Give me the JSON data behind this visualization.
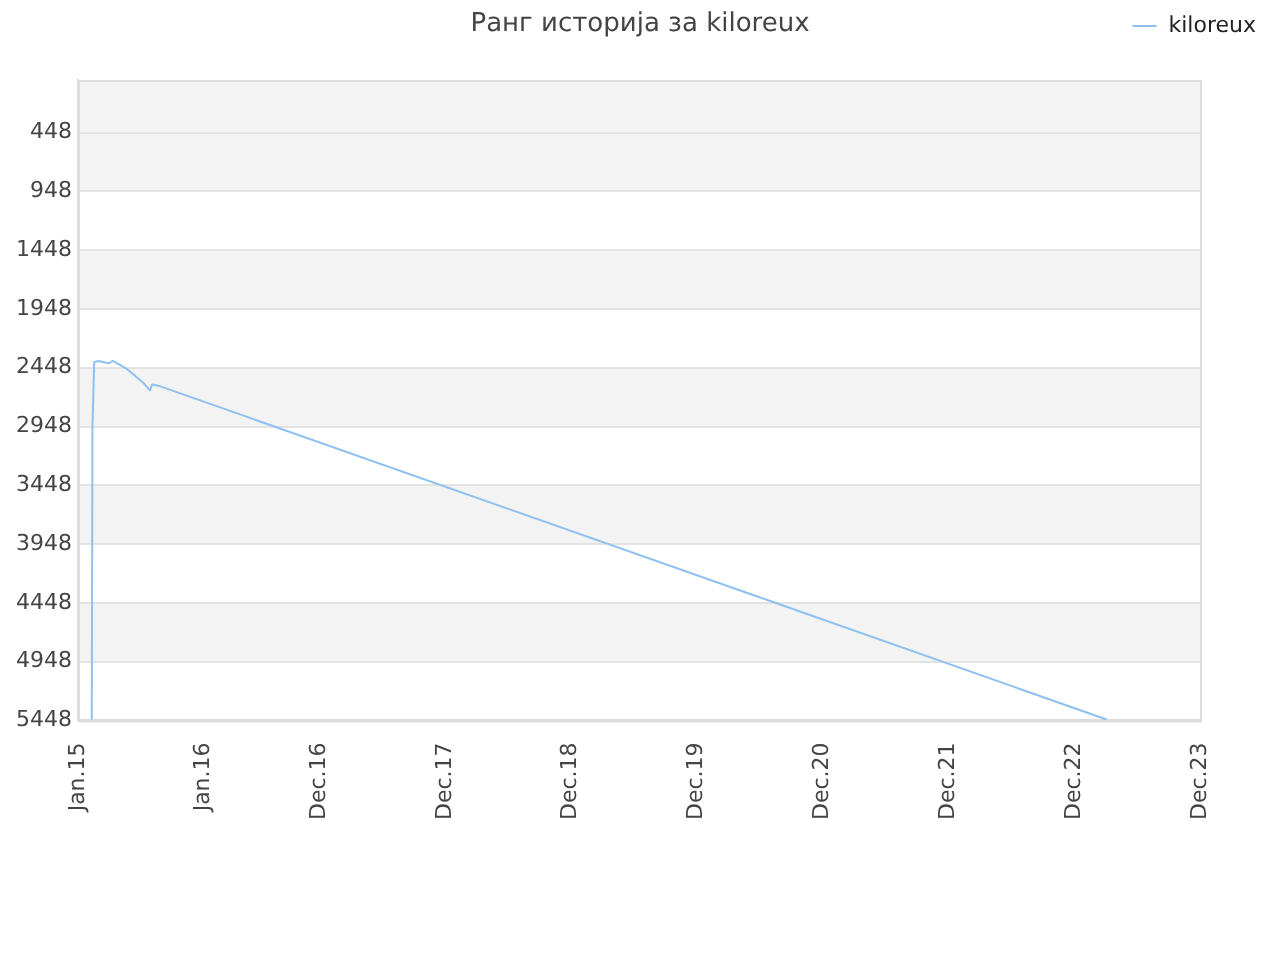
{
  "chart_data": {
    "type": "line",
    "title": "Ранг историја за kiloreux",
    "xlim": [
      "2015-01-01",
      "2023-12-01"
    ],
    "xticks": [
      {
        "value": "2015-01-01",
        "label": "Jan.15"
      },
      {
        "value": "2016-01-01",
        "label": "Jan.16"
      },
      {
        "value": "2016-12-01",
        "label": "Dec.16"
      },
      {
        "value": "2017-12-01",
        "label": "Dec.17"
      },
      {
        "value": "2018-12-01",
        "label": "Dec.18"
      },
      {
        "value": "2019-12-01",
        "label": "Dec.19"
      },
      {
        "value": "2020-12-01",
        "label": "Dec.20"
      },
      {
        "value": "2021-12-01",
        "label": "Dec.21"
      },
      {
        "value": "2022-12-01",
        "label": "Dec.22"
      },
      {
        "value": "2023-12-01",
        "label": "Dec.23"
      }
    ],
    "ylim": [
      5448,
      0
    ],
    "yticks": [
      448,
      948,
      1448,
      1948,
      2448,
      2948,
      3448,
      3948,
      4448,
      4948,
      5448
    ],
    "series": [
      {
        "name": "kiloreux",
        "color": "#8ec0f0",
        "x": [
          "2015-02-10",
          "2015-02-12",
          "2015-02-17",
          "2015-03-01",
          "2015-03-31",
          "2015-04-12",
          "2015-05-24",
          "2015-07-11",
          "2015-07-29",
          "2015-08-04",
          "2015-08-22",
          "2023-03-05"
        ],
        "values": [
          5440,
          2950,
          2400,
          2390,
          2410,
          2390,
          2460,
          2580,
          2640,
          2590,
          2600,
          5440
        ]
      }
    ],
    "grid": "y",
    "legend": "top right",
    "marker": "none",
    "line_style": "solid"
  }
}
